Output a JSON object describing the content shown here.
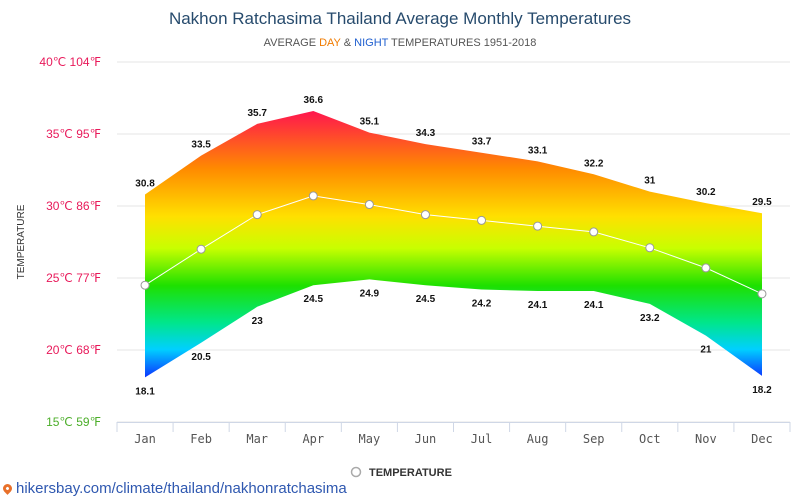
{
  "title": "Nakhon Ratchasima Thailand Average Monthly Temperatures",
  "subtitle": {
    "prefix": "AVERAGE ",
    "day": "DAY",
    "amp": " & ",
    "night": "NIGHT",
    "suffix": " TEMPERATURES 1951-2018"
  },
  "source_url": "hikersbay.com/climate/thailand/nakhonratchasima",
  "colors": {
    "title": "#274b6d",
    "day": "#f07b00",
    "night": "#1f5fcf",
    "source": "#2f58b0"
  },
  "chart_data": {
    "type": "area",
    "categories": [
      "Jan",
      "Feb",
      "Mar",
      "Apr",
      "May",
      "Jun",
      "Jul",
      "Aug",
      "Sep",
      "Oct",
      "Nov",
      "Dec"
    ],
    "ylabel": "TEMPERATURE",
    "ylim": [
      15,
      40
    ],
    "y_ticks": [
      {
        "value": 40,
        "label": "40℃ 104℉",
        "color": "#e8195a"
      },
      {
        "value": 35,
        "label": "35℃ 95℉",
        "color": "#e8195a"
      },
      {
        "value": 30,
        "label": "30℃ 86℉",
        "color": "#e8195a"
      },
      {
        "value": 25,
        "label": "25℃ 77℉",
        "color": "#e8195a"
      },
      {
        "value": 20,
        "label": "20℃ 68℉",
        "color": "#e8195a"
      },
      {
        "value": 15,
        "label": "15℃ 59℉",
        "color": "#4cae2a"
      }
    ],
    "grid": true,
    "day": [
      30.8,
      33.5,
      35.7,
      36.6,
      35.1,
      34.3,
      33.7,
      33.1,
      32.2,
      31,
      30.2,
      29.5
    ],
    "night": [
      18.1,
      20.5,
      23,
      24.5,
      24.9,
      24.5,
      24.2,
      24.1,
      24.1,
      23.2,
      21,
      18.2
    ],
    "series": [
      {
        "name": "TEMPERATURE",
        "values": [
          24.5,
          27,
          29.4,
          30.7,
          30.1,
          29.4,
          29,
          28.6,
          28.2,
          27.1,
          25.7,
          23.9
        ]
      }
    ],
    "legend_position": "bottom-center"
  }
}
